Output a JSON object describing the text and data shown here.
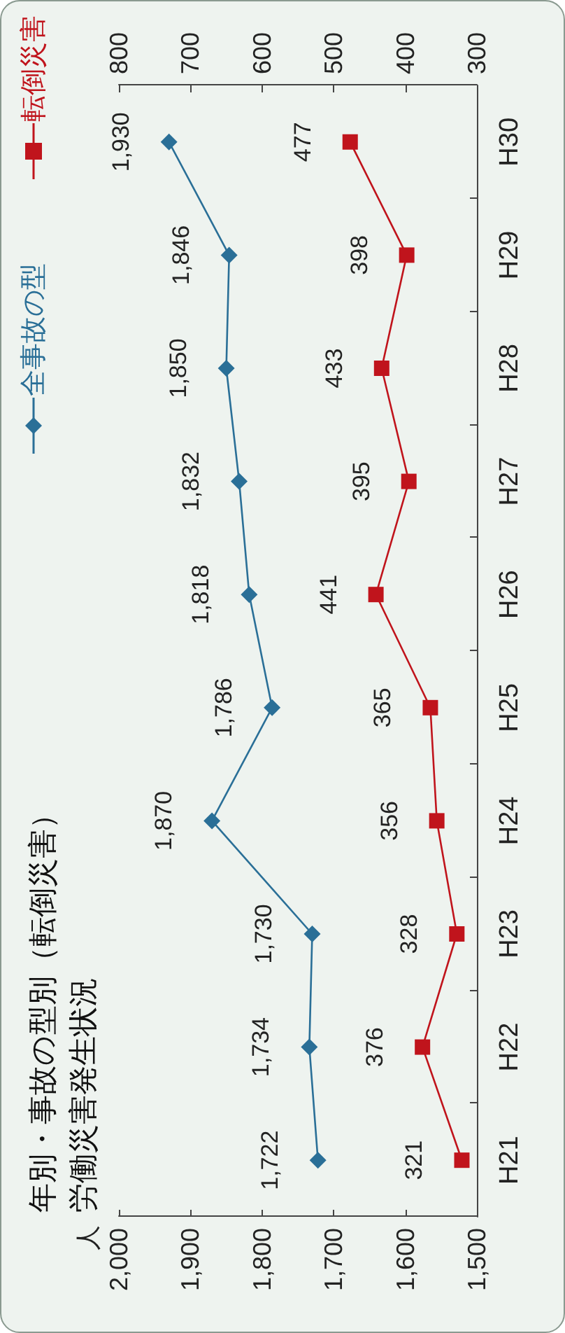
{
  "chart_data": {
    "type": "line",
    "orientation": "horizontal",
    "title": "年別・事故の型別（転倒災害）",
    "subtitle": "労働災害発生状況",
    "annotations": [
      "人"
    ],
    "categories": [
      "H30",
      "H29",
      "H28",
      "H27",
      "H26",
      "H25",
      "H24",
      "H23",
      "H22",
      "H21"
    ],
    "series": [
      {
        "name": "全事故の型",
        "color": "#2a6f97",
        "marker": "diamond",
        "values": [
          1930,
          1846,
          1850,
          1832,
          1818,
          1786,
          1870,
          1730,
          1734,
          1722
        ],
        "value_labels": [
          "1,930",
          "1,846",
          "1,850",
          "1,832",
          "1,818",
          "1,786",
          "1,870",
          "1,730",
          "1,734",
          "1,722"
        ]
      },
      {
        "name": "転倒災害",
        "color": "#c0141c",
        "marker": "square",
        "axis": "x2",
        "values": [
          477,
          398,
          433,
          395,
          441,
          365,
          356,
          328,
          376,
          321
        ],
        "value_labels": [
          "477",
          "398",
          "433",
          "395",
          "441",
          "365",
          "356",
          "328",
          "376",
          "321"
        ]
      }
    ],
    "xlim": [
      2000,
      1500
    ],
    "xticks": [
      {
        "value": 2000,
        "label": "2,000"
      },
      {
        "value": 1900,
        "label": "1,900"
      },
      {
        "value": 1800,
        "label": "1,800"
      },
      {
        "value": 1700,
        "label": "1,700"
      },
      {
        "value": 1600,
        "label": "1,600"
      },
      {
        "value": 1500,
        "label": "1,500"
      }
    ],
    "x2lim": [
      800,
      300
    ],
    "x2ticks": [
      800,
      700,
      600,
      500,
      400,
      300
    ],
    "grid": false,
    "legend": "top left",
    "line_style": "solid"
  }
}
